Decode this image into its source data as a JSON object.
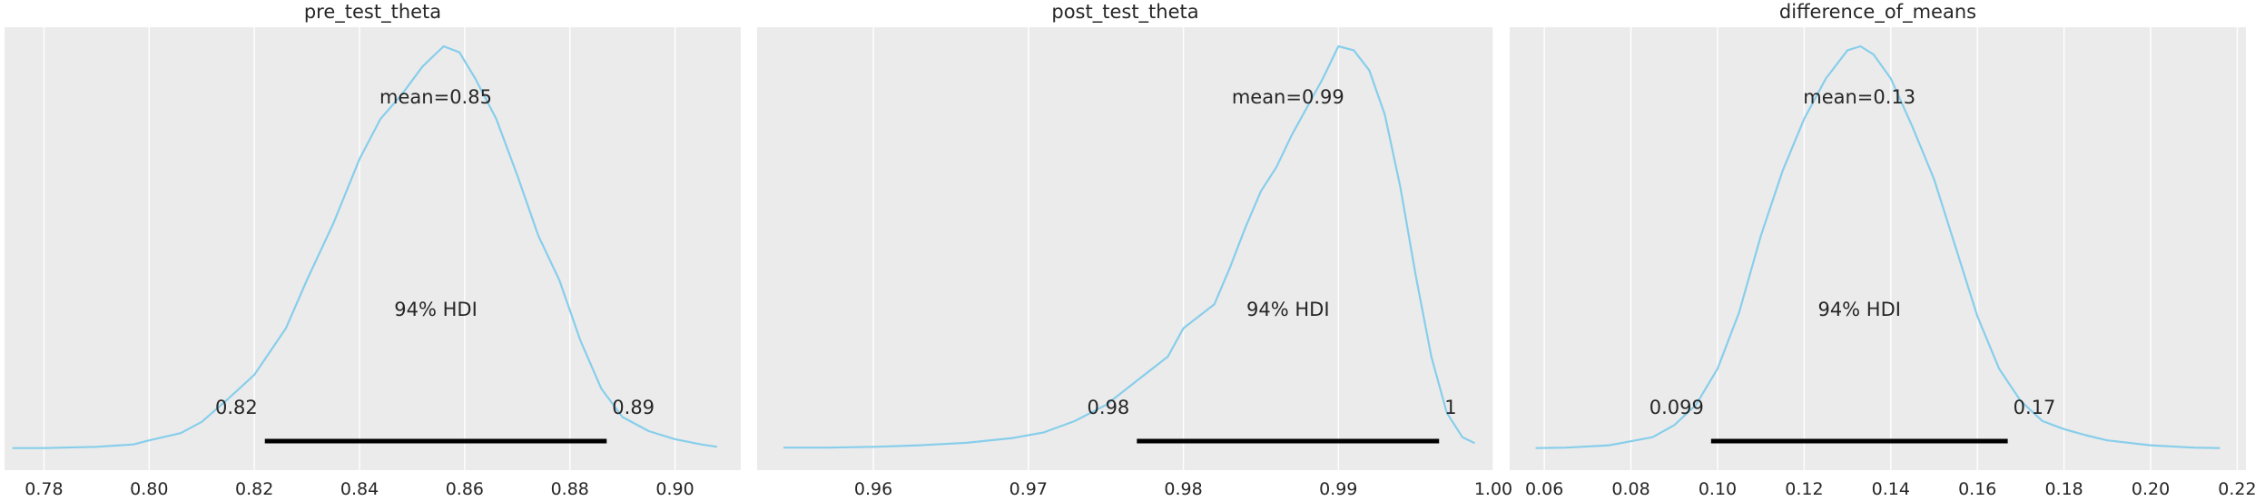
{
  "chart_data": [
    {
      "type": "line",
      "title": "pre_test_theta",
      "xlabel": "",
      "ylabel": "",
      "xlim": [
        0.7725,
        0.9125
      ],
      "xticks": [
        0.78,
        0.8,
        0.82,
        0.84,
        0.86,
        0.88,
        0.9
      ],
      "xtick_labels": [
        "0.78",
        "0.80",
        "0.82",
        "0.84",
        "0.86",
        "0.88",
        "0.90"
      ],
      "grid": true,
      "color": "#87ceeb",
      "density": {
        "x": [
          0.774,
          0.78,
          0.79,
          0.797,
          0.8,
          0.806,
          0.81,
          0.815,
          0.82,
          0.826,
          0.83,
          0.835,
          0.84,
          0.844,
          0.848,
          0.852,
          0.856,
          0.859,
          0.862,
          0.866,
          0.87,
          0.874,
          0.878,
          0.882,
          0.886,
          0.89,
          0.895,
          0.9,
          0.905,
          0.908
        ],
        "y": [
          0.003,
          0.003,
          0.006,
          0.012,
          0.022,
          0.04,
          0.068,
          0.125,
          0.185,
          0.3,
          0.42,
          0.56,
          0.72,
          0.82,
          0.88,
          0.95,
          1.0,
          0.985,
          0.92,
          0.82,
          0.68,
          0.53,
          0.42,
          0.27,
          0.15,
          0.08,
          0.045,
          0.025,
          0.012,
          0.006
        ]
      },
      "mean_label": "mean=0.85",
      "hdi_label": "94% HDI",
      "hdi": [
        0.822,
        0.887
      ],
      "hdi_low_label": "0.82",
      "hdi_high_label": "0.89"
    },
    {
      "type": "line",
      "title": "post_test_theta",
      "xlabel": "",
      "ylabel": "",
      "xlim": [
        0.9525,
        1.0
      ],
      "xticks": [
        0.96,
        0.97,
        0.98,
        0.99,
        1.0
      ],
      "xtick_labels": [
        "0.96",
        "0.97",
        "0.98",
        "0.99",
        "1.00"
      ],
      "grid": true,
      "color": "#87ceeb",
      "density": {
        "x": [
          0.9542,
          0.957,
          0.96,
          0.963,
          0.966,
          0.969,
          0.971,
          0.973,
          0.975,
          0.977,
          0.979,
          0.98,
          0.982,
          0.983,
          0.984,
          0.985,
          0.986,
          0.987,
          0.988,
          0.989,
          0.99,
          0.991,
          0.992,
          0.993,
          0.994,
          0.995,
          0.996,
          0.997,
          0.998,
          0.9988
        ],
        "y": [
          0.004,
          0.004,
          0.006,
          0.01,
          0.016,
          0.028,
          0.042,
          0.07,
          0.11,
          0.17,
          0.23,
          0.3,
          0.36,
          0.45,
          0.55,
          0.64,
          0.7,
          0.78,
          0.85,
          0.92,
          1.0,
          0.99,
          0.94,
          0.83,
          0.65,
          0.43,
          0.23,
          0.09,
          0.03,
          0.015
        ]
      },
      "mean_label": "mean=0.99",
      "hdi_label": "94% HDI",
      "hdi": [
        0.977,
        0.9965
      ],
      "hdi_low_label": "0.98",
      "hdi_high_label": "1"
    },
    {
      "type": "line",
      "title": "difference_of_means",
      "xlabel": "",
      "ylabel": "",
      "xlim": [
        0.052,
        0.222
      ],
      "xticks": [
        0.06,
        0.08,
        0.1,
        0.12,
        0.14,
        0.16,
        0.18,
        0.2,
        0.22
      ],
      "xtick_labels": [
        "0.06",
        "0.08",
        "0.10",
        "0.12",
        "0.14",
        "0.16",
        "0.18",
        "0.20",
        "0.22"
      ],
      "grid": true,
      "color": "#87ceeb",
      "density": {
        "x": [
          0.058,
          0.065,
          0.075,
          0.085,
          0.09,
          0.095,
          0.1,
          0.105,
          0.11,
          0.115,
          0.12,
          0.125,
          0.13,
          0.133,
          0.136,
          0.14,
          0.145,
          0.15,
          0.155,
          0.16,
          0.165,
          0.17,
          0.175,
          0.18,
          0.185,
          0.19,
          0.2,
          0.21,
          0.216
        ],
        "y": [
          0.003,
          0.004,
          0.01,
          0.03,
          0.06,
          0.11,
          0.2,
          0.34,
          0.53,
          0.69,
          0.82,
          0.92,
          0.99,
          1.0,
          0.98,
          0.92,
          0.8,
          0.67,
          0.5,
          0.33,
          0.2,
          0.12,
          0.07,
          0.05,
          0.035,
          0.022,
          0.01,
          0.004,
          0.003
        ]
      },
      "mean_label": "mean=0.13",
      "hdi_label": "94% HDI",
      "hdi": [
        0.0985,
        0.167
      ],
      "hdi_low_label": "0.099",
      "hdi_high_label": "0.17"
    }
  ]
}
